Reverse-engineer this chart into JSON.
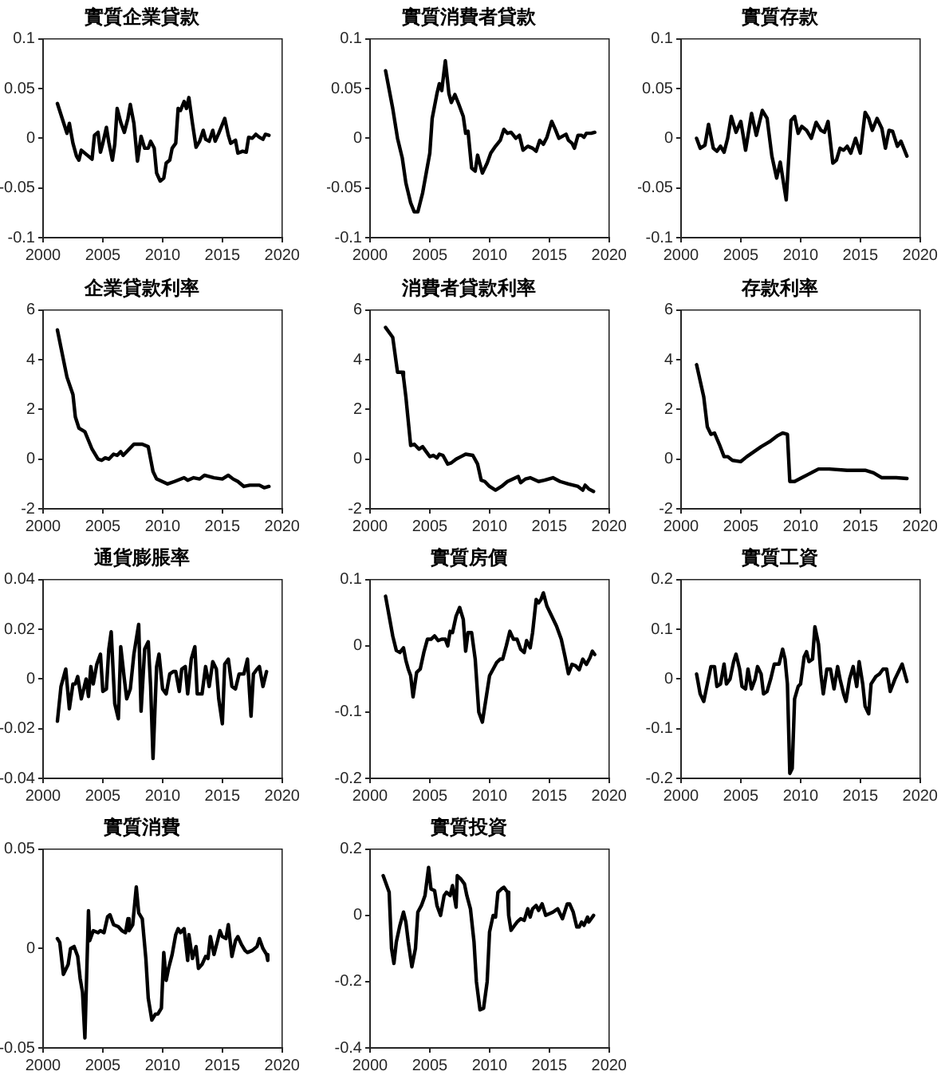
{
  "chart_data": [
    {
      "type": "line",
      "title": "實質企業貸款",
      "color": "#000000",
      "xlim": [
        2000,
        2020
      ],
      "xticks": [
        2000,
        2005,
        2010,
        2015,
        2020
      ],
      "ylim": [
        -0.1,
        0.1
      ],
      "yticks": [
        -0.1,
        -0.05,
        0,
        0.05,
        0.1
      ],
      "x": [
        2001.2,
        2001.6,
        2002.0,
        2002.2,
        2002.5,
        2002.8,
        2003.0,
        2003.2,
        2003.7,
        2004.1,
        2004.3,
        2004.6,
        2004.8,
        2005.0,
        2005.3,
        2005.5,
        2005.8,
        2006.0,
        2006.2,
        2006.5,
        2006.8,
        2007.1,
        2007.3,
        2007.6,
        2007.9,
        2008.2,
        2008.5,
        2008.8,
        2009.0,
        2009.3,
        2009.5,
        2009.8,
        2010.1,
        2010.3,
        2010.6,
        2010.8,
        2011.1,
        2011.3,
        2011.5,
        2011.8,
        2012.0,
        2012.2,
        2012.5,
        2012.8,
        2013.1,
        2013.4,
        2013.6,
        2013.9,
        2014.2,
        2014.4,
        2014.7,
        2015.2,
        2015.5,
        2015.7,
        2016.1,
        2016.3,
        2016.7,
        2017.0,
        2017.2,
        2017.5,
        2017.8,
        2018.1,
        2018.4,
        2018.6,
        2018.9
      ],
      "values": [
        0.035,
        0.02,
        0.005,
        0.015,
        -0.005,
        -0.018,
        -0.022,
        -0.012,
        -0.017,
        -0.021,
        0.003,
        0.006,
        -0.014,
        -0.005,
        0.011,
        -0.004,
        -0.022,
        -0.006,
        0.03,
        0.016,
        0.006,
        0.02,
        0.034,
        0.015,
        -0.023,
        0.002,
        -0.01,
        -0.01,
        -0.003,
        -0.01,
        -0.035,
        -0.043,
        -0.04,
        -0.025,
        -0.022,
        -0.01,
        -0.005,
        0.03,
        0.028,
        0.037,
        0.03,
        0.041,
        0.015,
        -0.009,
        -0.003,
        0.008,
        -0.001,
        -0.003,
        0.008,
        -0.003,
        0.005,
        0.02,
        0.003,
        -0.005,
        -0.002,
        -0.015,
        -0.013,
        -0.014,
        0.001,
        0.0,
        0.004,
        0.001,
        -0.001,
        0.004,
        0.003
      ]
    },
    {
      "type": "line",
      "title": "實質消費者貸款",
      "color": "#000000",
      "xlim": [
        2000,
        2020
      ],
      "xticks": [
        2000,
        2005,
        2010,
        2015,
        2020
      ],
      "ylim": [
        -0.1,
        0.1
      ],
      "yticks": [
        -0.1,
        -0.05,
        0,
        0.05,
        0.1
      ],
      "x": [
        2001.3,
        2001.9,
        2002.3,
        2002.7,
        2003.0,
        2003.4,
        2003.7,
        2004.0,
        2004.4,
        2004.7,
        2005.0,
        2005.2,
        2005.6,
        2005.8,
        2006.0,
        2006.3,
        2006.6,
        2006.8,
        2007.1,
        2007.4,
        2007.8,
        2008.0,
        2008.2,
        2008.5,
        2008.8,
        2009.0,
        2009.4,
        2009.8,
        2010.1,
        2010.5,
        2010.9,
        2011.2,
        2011.5,
        2011.8,
        2012.2,
        2012.5,
        2012.8,
        2013.2,
        2013.6,
        2013.9,
        2014.2,
        2014.5,
        2014.8,
        2015.2,
        2015.5,
        2015.8,
        2016.1,
        2016.4,
        2016.6,
        2016.9,
        2017.1,
        2017.4,
        2017.7,
        2017.9,
        2018.1,
        2018.5,
        2018.8
      ],
      "values": [
        0.068,
        0.03,
        0.0,
        -0.02,
        -0.045,
        -0.065,
        -0.074,
        -0.074,
        -0.055,
        -0.035,
        -0.015,
        0.02,
        0.045,
        0.055,
        0.048,
        0.078,
        0.045,
        0.036,
        0.044,
        0.035,
        0.022,
        0.005,
        0.007,
        -0.03,
        -0.033,
        -0.017,
        -0.035,
        -0.025,
        -0.015,
        -0.008,
        -0.002,
        0.009,
        0.005,
        0.006,
        0.0,
        0.003,
        -0.012,
        -0.008,
        -0.01,
        -0.013,
        -0.002,
        -0.006,
        0.001,
        0.017,
        0.009,
        0.0,
        0.002,
        0.004,
        -0.002,
        -0.005,
        -0.01,
        0.003,
        0.003,
        0.001,
        0.005,
        0.005,
        0.006
      ]
    },
    {
      "type": "line",
      "title": "實質存款",
      "color": "#000000",
      "xlim": [
        2000,
        2020
      ],
      "xticks": [
        2000,
        2005,
        2010,
        2015,
        2020
      ],
      "ylim": [
        -0.1,
        0.1
      ],
      "yticks": [
        -0.1,
        -0.05,
        0,
        0.05,
        0.1
      ],
      "x": [
        2001.3,
        2001.6,
        2002.0,
        2002.3,
        2002.7,
        2003.0,
        2003.3,
        2003.6,
        2003.9,
        2004.2,
        2004.6,
        2005.0,
        2005.4,
        2005.9,
        2006.3,
        2006.8,
        2007.2,
        2007.6,
        2008.0,
        2008.3,
        2008.8,
        2009.2,
        2009.5,
        2009.8,
        2010.1,
        2010.5,
        2010.9,
        2011.3,
        2011.7,
        2012.0,
        2012.3,
        2012.7,
        2013.0,
        2013.3,
        2013.6,
        2013.9,
        2014.2,
        2014.6,
        2015.0,
        2015.4,
        2015.7,
        2016.0,
        2016.4,
        2016.8,
        2017.1,
        2017.4,
        2017.7,
        2018.1,
        2018.4,
        2018.9
      ],
      "values": [
        0.0,
        -0.01,
        -0.007,
        0.014,
        -0.01,
        -0.013,
        -0.008,
        -0.014,
        0.0,
        0.022,
        0.006,
        0.017,
        -0.012,
        0.025,
        0.003,
        0.028,
        0.02,
        -0.018,
        -0.04,
        -0.024,
        -0.062,
        0.018,
        0.022,
        0.005,
        0.012,
        0.008,
        0.0,
        0.016,
        0.008,
        0.006,
        0.017,
        -0.025,
        -0.022,
        -0.01,
        -0.012,
        -0.008,
        -0.015,
        0.0,
        -0.015,
        0.026,
        0.02,
        0.008,
        0.02,
        0.01,
        -0.01,
        0.008,
        0.007,
        -0.008,
        -0.003,
        -0.018
      ]
    },
    {
      "type": "line",
      "title": "企業貸款利率",
      "color": "#000000",
      "xlim": [
        2000,
        2020
      ],
      "xticks": [
        2000,
        2005,
        2010,
        2015,
        2020
      ],
      "ylim": [
        -2,
        6
      ],
      "yticks": [
        -2,
        0,
        2,
        4,
        6
      ],
      "x": [
        2001.2,
        2002.0,
        2002.5,
        2002.7,
        2003.0,
        2003.5,
        2004.1,
        2004.6,
        2004.9,
        2005.2,
        2005.5,
        2005.9,
        2006.2,
        2006.5,
        2006.7,
        2007.1,
        2007.6,
        2008.3,
        2008.8,
        2009.2,
        2009.5,
        2010.4,
        2011.0,
        2011.8,
        2012.1,
        2012.6,
        2013.1,
        2013.5,
        2014.3,
        2015.0,
        2015.5,
        2015.9,
        2016.3,
        2016.8,
        2017.3,
        2018.1,
        2018.5,
        2018.9
      ],
      "values": [
        5.2,
        3.3,
        2.6,
        1.7,
        1.25,
        1.1,
        0.4,
        0.0,
        -0.05,
        0.05,
        0.0,
        0.2,
        0.15,
        0.3,
        0.15,
        0.35,
        0.6,
        0.6,
        0.5,
        -0.5,
        -0.8,
        -1.0,
        -0.9,
        -0.75,
        -0.85,
        -0.75,
        -0.8,
        -0.65,
        -0.75,
        -0.8,
        -0.65,
        -0.8,
        -0.9,
        -1.1,
        -1.05,
        -1.05,
        -1.15,
        -1.1
      ]
    },
    {
      "type": "line",
      "title": "消費者貸款利率",
      "color": "#000000",
      "xlim": [
        2000,
        2020
      ],
      "xticks": [
        2000,
        2005,
        2010,
        2015,
        2020
      ],
      "ylim": [
        -2,
        6
      ],
      "yticks": [
        -2,
        0,
        2,
        4,
        6
      ],
      "x": [
        2001.3,
        2001.9,
        2002.3,
        2002.7,
        2002.8,
        2003.0,
        2003.4,
        2003.7,
        2004.1,
        2004.4,
        2004.7,
        2005.0,
        2005.3,
        2005.6,
        2005.8,
        2006.1,
        2006.5,
        2006.8,
        2007.2,
        2007.6,
        2008.0,
        2008.6,
        2009.0,
        2009.3,
        2009.6,
        2010.0,
        2010.5,
        2011.0,
        2011.5,
        2012.4,
        2012.6,
        2013.0,
        2013.4,
        2014.1,
        2014.6,
        2015.3,
        2015.9,
        2016.6,
        2017.4,
        2017.8,
        2018.0,
        2018.3,
        2018.7
      ],
      "values": [
        5.3,
        4.9,
        3.5,
        3.5,
        3.3,
        2.5,
        0.55,
        0.6,
        0.4,
        0.5,
        0.3,
        0.1,
        0.15,
        0.05,
        0.2,
        0.15,
        -0.2,
        -0.15,
        0.0,
        0.1,
        0.2,
        0.15,
        -0.2,
        -0.85,
        -0.9,
        -1.1,
        -1.25,
        -1.1,
        -0.9,
        -0.7,
        -0.95,
        -0.8,
        -0.75,
        -0.9,
        -0.85,
        -0.75,
        -0.9,
        -1.0,
        -1.1,
        -1.25,
        -1.05,
        -1.2,
        -1.3
      ]
    },
    {
      "type": "line",
      "title": "存款利率",
      "color": "#000000",
      "xlim": [
        2000,
        2020
      ],
      "xticks": [
        2000,
        2005,
        2010,
        2015,
        2020
      ],
      "ylim": [
        -2,
        6
      ],
      "yticks": [
        -2,
        0,
        2,
        4,
        6
      ],
      "x": [
        2001.3,
        2001.9,
        2002.2,
        2002.5,
        2002.8,
        2003.2,
        2003.6,
        2003.9,
        2004.3,
        2005.0,
        2005.5,
        2006.1,
        2006.7,
        2007.4,
        2008.1,
        2008.5,
        2008.9,
        2009.1,
        2009.5,
        2010.1,
        2010.7,
        2011.5,
        2012.4,
        2013.9,
        2015.4,
        2016.1,
        2016.8,
        2018.0,
        2018.9
      ],
      "values": [
        3.8,
        2.5,
        1.3,
        1.0,
        1.05,
        0.6,
        0.1,
        0.1,
        -0.05,
        -0.1,
        0.1,
        0.3,
        0.5,
        0.7,
        0.95,
        1.05,
        1.0,
        -0.9,
        -0.9,
        -0.75,
        -0.6,
        -0.4,
        -0.4,
        -0.45,
        -0.45,
        -0.55,
        -0.75,
        -0.75,
        -0.78
      ]
    },
    {
      "type": "line",
      "title": "通貨膨脹率",
      "color": "#000000",
      "xlim": [
        2000,
        2020
      ],
      "xticks": [
        2000,
        2005,
        2010,
        2015,
        2020
      ],
      "ylim": [
        -0.04,
        0.04
      ],
      "yticks": [
        -0.04,
        -0.02,
        0,
        0.02,
        0.04
      ],
      "x": [
        2001.2,
        2001.5,
        2001.9,
        2002.2,
        2002.5,
        2002.7,
        2002.9,
        2003.2,
        2003.6,
        2003.8,
        2004.0,
        2004.2,
        2004.5,
        2004.8,
        2005.0,
        2005.3,
        2005.5,
        2005.7,
        2006.0,
        2006.3,
        2006.5,
        2006.8,
        2007.0,
        2007.3,
        2007.6,
        2008.0,
        2008.2,
        2008.5,
        2008.8,
        2009.0,
        2009.2,
        2009.5,
        2009.7,
        2010.0,
        2010.3,
        2010.6,
        2010.9,
        2011.1,
        2011.4,
        2011.6,
        2011.9,
        2012.1,
        2012.4,
        2012.7,
        2012.9,
        2013.3,
        2013.6,
        2013.9,
        2014.2,
        2014.5,
        2014.7,
        2015.0,
        2015.2,
        2015.5,
        2015.8,
        2016.1,
        2016.4,
        2016.8,
        2017.1,
        2017.4,
        2017.6,
        2017.9,
        2018.1,
        2018.4,
        2018.7
      ],
      "values": [
        -0.017,
        -0.003,
        0.004,
        -0.012,
        -0.002,
        -0.002,
        0.001,
        -0.008,
        0.0,
        -0.007,
        0.005,
        -0.002,
        0.006,
        0.01,
        -0.005,
        -0.004,
        0.012,
        0.019,
        -0.01,
        -0.016,
        0.013,
        0.0,
        -0.008,
        -0.004,
        0.01,
        0.022,
        -0.013,
        0.012,
        0.015,
        -0.003,
        -0.032,
        0.005,
        0.01,
        -0.004,
        -0.006,
        0.002,
        0.003,
        0.003,
        -0.005,
        0.004,
        0.005,
        -0.006,
        0.008,
        0.013,
        -0.006,
        -0.006,
        0.005,
        -0.003,
        0.007,
        0.004,
        -0.008,
        -0.018,
        0.006,
        0.008,
        -0.003,
        -0.004,
        0.002,
        0.002,
        0.008,
        -0.015,
        0.002,
        0.004,
        0.005,
        -0.003,
        0.003
      ]
    },
    {
      "type": "line",
      "title": "實質房價",
      "color": "#000000",
      "xlim": [
        2000,
        2020
      ],
      "xticks": [
        2000,
        2005,
        2010,
        2015,
        2020
      ],
      "ylim": [
        -0.2,
        0.1
      ],
      "yticks": [
        -0.2,
        -0.1,
        0,
        0.1
      ],
      "x": [
        2001.3,
        2001.6,
        2001.9,
        2002.2,
        2002.5,
        2002.8,
        2003.0,
        2003.2,
        2003.4,
        2003.6,
        2003.9,
        2004.2,
        2004.5,
        2004.8,
        2005.1,
        2005.4,
        2005.7,
        2006.0,
        2006.3,
        2006.5,
        2006.7,
        2006.9,
        2007.2,
        2007.5,
        2007.8,
        2008.0,
        2008.2,
        2008.5,
        2008.8,
        2009.1,
        2009.4,
        2009.7,
        2010.0,
        2010.3,
        2010.6,
        2010.9,
        2011.1,
        2011.4,
        2011.7,
        2012.0,
        2012.3,
        2012.6,
        2012.9,
        2013.1,
        2013.4,
        2013.6,
        2013.9,
        2014.1,
        2014.3,
        2014.5,
        2014.8,
        2015.2,
        2015.6,
        2016.0,
        2016.3,
        2016.6,
        2016.9,
        2017.2,
        2017.5,
        2017.8,
        2018.1,
        2018.4,
        2018.6,
        2018.8
      ],
      "values": [
        0.075,
        0.045,
        0.015,
        -0.007,
        -0.01,
        -0.003,
        -0.022,
        -0.035,
        -0.045,
        -0.077,
        -0.04,
        -0.035,
        -0.01,
        0.01,
        0.01,
        0.015,
        0.008,
        0.01,
        0.01,
        0.0,
        0.022,
        0.02,
        0.045,
        0.058,
        0.04,
        -0.008,
        0.02,
        0.02,
        -0.02,
        -0.1,
        -0.115,
        -0.08,
        -0.045,
        -0.035,
        -0.025,
        -0.02,
        -0.02,
        0.0,
        0.022,
        0.01,
        0.01,
        -0.005,
        -0.01,
        0.008,
        -0.003,
        0.02,
        0.07,
        0.065,
        0.07,
        0.08,
        0.06,
        0.045,
        0.03,
        0.01,
        -0.015,
        -0.042,
        -0.028,
        -0.03,
        -0.036,
        -0.02,
        -0.028,
        -0.018,
        -0.008,
        -0.013
      ]
    },
    {
      "type": "line",
      "title": "實質工資",
      "color": "#000000",
      "xlim": [
        2000,
        2020
      ],
      "xticks": [
        2000,
        2005,
        2010,
        2015,
        2020
      ],
      "ylim": [
        -0.2,
        0.2
      ],
      "yticks": [
        -0.2,
        -0.1,
        0,
        0.1,
        0.2
      ],
      "x": [
        2001.3,
        2001.6,
        2001.9,
        2002.2,
        2002.5,
        2002.8,
        2003.0,
        2003.3,
        2003.6,
        2003.8,
        2004.1,
        2004.4,
        2004.6,
        2004.9,
        2005.1,
        2005.4,
        2005.6,
        2005.9,
        2006.2,
        2006.4,
        2006.7,
        2006.9,
        2007.2,
        2007.5,
        2007.8,
        2008.2,
        2008.5,
        2008.7,
        2008.9,
        2009.1,
        2009.3,
        2009.5,
        2009.8,
        2010.0,
        2010.3,
        2010.5,
        2010.7,
        2011.0,
        2011.2,
        2011.5,
        2011.7,
        2011.9,
        2012.2,
        2012.5,
        2012.8,
        2013.1,
        2013.3,
        2013.6,
        2013.8,
        2014.1,
        2014.4,
        2014.7,
        2014.9,
        2015.2,
        2015.4,
        2015.7,
        2015.9,
        2016.3,
        2016.6,
        2016.9,
        2017.2,
        2017.5,
        2017.9,
        2018.5,
        2018.9
      ],
      "values": [
        0.01,
        -0.03,
        -0.045,
        -0.01,
        0.025,
        0.025,
        -0.015,
        -0.01,
        0.03,
        -0.01,
        0.0,
        0.035,
        0.05,
        0.02,
        -0.015,
        -0.02,
        0.02,
        -0.02,
        0.0,
        0.025,
        0.01,
        -0.03,
        -0.025,
        0.0,
        0.03,
        0.03,
        0.06,
        0.04,
        -0.01,
        -0.19,
        -0.18,
        -0.04,
        -0.015,
        -0.01,
        0.045,
        0.055,
        0.035,
        0.04,
        0.105,
        0.07,
        0.01,
        -0.03,
        0.02,
        0.02,
        -0.02,
        0.025,
        0.0,
        -0.03,
        -0.045,
        0.0,
        0.025,
        -0.015,
        0.035,
        -0.01,
        -0.055,
        -0.07,
        -0.01,
        0.005,
        0.01,
        0.02,
        0.02,
        -0.025,
        0.0,
        0.03,
        -0.005
      ]
    },
    {
      "type": "line",
      "title": "實質消費",
      "color": "#000000",
      "xlim": [
        2000,
        2020
      ],
      "xticks": [
        2000,
        2005,
        2010,
        2015,
        2020
      ],
      "ylim": [
        -0.05,
        0.05
      ],
      "yticks": [
        -0.05,
        0,
        0.05
      ],
      "x": [
        2001.2,
        2001.4,
        2001.7,
        2002.1,
        2002.3,
        2002.6,
        2002.9,
        2003.1,
        2003.3,
        2003.5,
        2003.8,
        2003.9,
        2004.2,
        2004.6,
        2004.8,
        2005.1,
        2005.4,
        2005.6,
        2005.9,
        2006.3,
        2006.6,
        2006.9,
        2007.1,
        2007.2,
        2007.5,
        2007.8,
        2008.0,
        2008.3,
        2008.6,
        2008.8,
        2009.1,
        2009.4,
        2009.6,
        2009.9,
        2010.1,
        2010.3,
        2010.5,
        2010.8,
        2011.1,
        2011.3,
        2011.5,
        2011.8,
        2012.1,
        2012.2,
        2012.5,
        2012.8,
        2013.0,
        2013.3,
        2013.6,
        2013.8,
        2014.0,
        2014.3,
        2014.6,
        2014.8,
        2015.0,
        2015.3,
        2015.5,
        2015.8,
        2016.1,
        2016.3,
        2016.6,
        2016.9,
        2017.1,
        2017.5,
        2017.9,
        2018.1,
        2018.4,
        2018.7,
        2018.8
      ],
      "values": [
        0.005,
        0.003,
        -0.013,
        -0.008,
        0.0,
        0.001,
        -0.004,
        -0.015,
        -0.022,
        -0.045,
        0.019,
        0.004,
        0.009,
        0.008,
        0.009,
        0.008,
        0.016,
        0.017,
        0.012,
        0.011,
        0.009,
        0.008,
        0.015,
        0.009,
        0.012,
        0.031,
        0.018,
        0.015,
        -0.005,
        -0.025,
        -0.036,
        -0.033,
        -0.033,
        -0.03,
        -0.002,
        -0.016,
        -0.01,
        -0.003,
        0.007,
        0.01,
        0.008,
        0.01,
        -0.006,
        0.007,
        -0.005,
        0.001,
        -0.01,
        -0.008,
        -0.004,
        -0.005,
        0.006,
        -0.003,
        0.004,
        0.009,
        0.006,
        0.005,
        0.012,
        -0.004,
        0.004,
        0.006,
        0.002,
        -0.001,
        -0.002,
        -0.001,
        0.001,
        0.005,
        0.0,
        -0.003,
        -0.006
      ]
    },
    {
      "type": "line",
      "title": "實質投資",
      "color": "#000000",
      "xlim": [
        2000,
        2020
      ],
      "xticks": [
        2000,
        2005,
        2010,
        2015,
        2020
      ],
      "ylim": [
        -0.4,
        0.2
      ],
      "yticks": [
        -0.4,
        -0.2,
        0,
        0.2
      ],
      "x": [
        2001.1,
        2001.3,
        2001.6,
        2001.8,
        2002.0,
        2002.2,
        2002.5,
        2002.8,
        2003.0,
        2003.2,
        2003.5,
        2003.8,
        2004.0,
        2004.3,
        2004.6,
        2004.9,
        2005.1,
        2005.4,
        2005.6,
        2005.9,
        2006.2,
        2006.4,
        2006.7,
        2006.9,
        2007.2,
        2007.3,
        2007.6,
        2007.9,
        2008.1,
        2008.4,
        2008.7,
        2008.9,
        2009.2,
        2009.5,
        2009.8,
        2010.0,
        2010.3,
        2010.5,
        2010.7,
        2011.0,
        2011.2,
        2011.5,
        2011.6,
        2011.8,
        2012.1,
        2012.3,
        2012.6,
        2012.9,
        2013.2,
        2013.4,
        2013.6,
        2013.9,
        2014.1,
        2014.4,
        2014.7,
        2015.0,
        2015.3,
        2015.7,
        2015.9,
        2016.1,
        2016.5,
        2016.7,
        2017.0,
        2017.3,
        2017.5,
        2017.7,
        2017.9,
        2018.2,
        2018.3,
        2018.6,
        2018.7
      ],
      "values": [
        0.12,
        0.1,
        0.07,
        -0.1,
        -0.145,
        -0.08,
        -0.03,
        0.01,
        -0.02,
        -0.08,
        -0.155,
        -0.1,
        0.01,
        0.03,
        0.06,
        0.145,
        0.08,
        0.075,
        0.03,
        0.0,
        0.06,
        0.07,
        0.06,
        0.09,
        0.025,
        0.12,
        0.11,
        0.095,
        0.06,
        0.02,
        -0.08,
        -0.2,
        -0.285,
        -0.28,
        -0.2,
        -0.05,
        0.0,
        -0.005,
        0.07,
        0.08,
        0.085,
        0.07,
        0.0,
        -0.045,
        -0.03,
        -0.02,
        -0.01,
        -0.015,
        0.02,
        -0.005,
        0.02,
        0.03,
        0.015,
        0.035,
        0.0,
        0.005,
        0.01,
        0.02,
        0.005,
        -0.01,
        0.035,
        0.035,
        0.01,
        -0.035,
        -0.035,
        -0.02,
        -0.03,
        -0.005,
        -0.02,
        -0.005,
        0.0
      ]
    }
  ]
}
